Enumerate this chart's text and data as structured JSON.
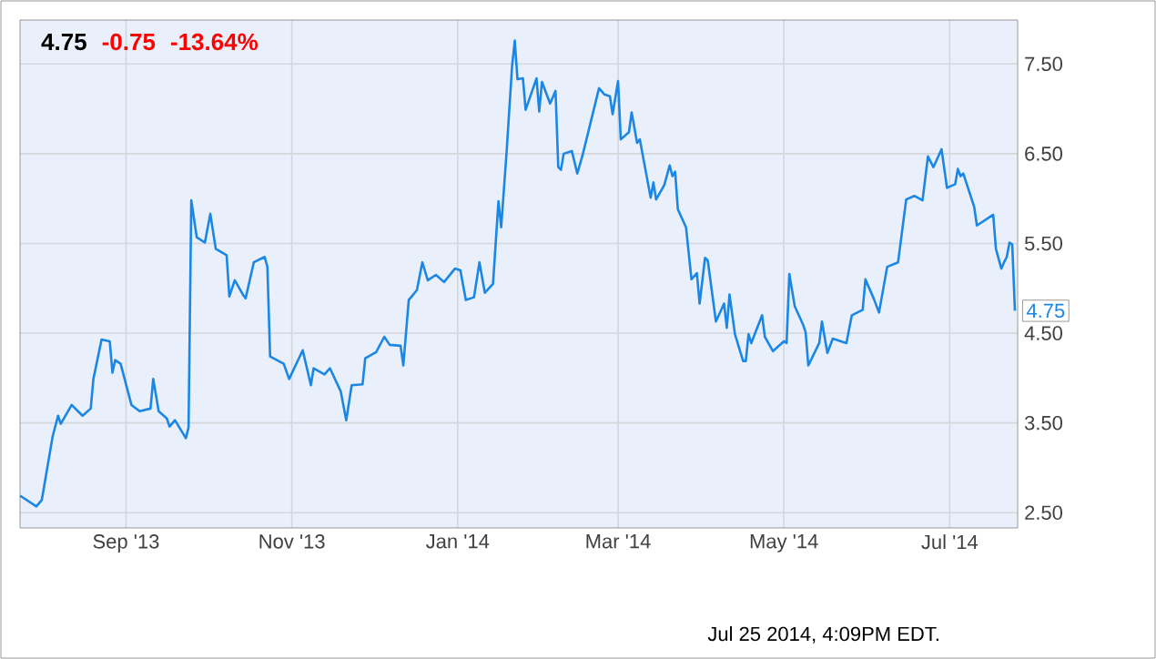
{
  "chart_data": {
    "type": "line",
    "title": "4.75",
    "annotations": [
      "-0.75",
      "-13.64%",
      "Jul 25 2014, 4:09PM EDT.",
      {
        "text": "4.75",
        "x": "2014-07-25",
        "y": 4.75
      }
    ],
    "xlim": [
      "2013-07-24",
      "2014-07-26"
    ],
    "xticks": [
      {
        "value": "2013-09-01",
        "label": "Sep '13"
      },
      {
        "value": "2013-11-01",
        "label": "Nov '13"
      },
      {
        "value": "2014-01-01",
        "label": "Jan '14"
      },
      {
        "value": "2014-03-01",
        "label": "Mar '14"
      },
      {
        "value": "2014-05-01",
        "label": "May '14"
      },
      {
        "value": "2014-07-01",
        "label": "Jul '14"
      }
    ],
    "ylim": [
      2.33,
      7.99
    ],
    "yticks": [
      {
        "value": 2.5,
        "label": "2.50"
      },
      {
        "value": 3.5,
        "label": "3.50"
      },
      {
        "value": 4.5,
        "label": "4.50"
      },
      {
        "value": 5.5,
        "label": "5.50"
      },
      {
        "value": 6.5,
        "label": "6.50"
      },
      {
        "value": 7.5,
        "label": "7.50"
      }
    ],
    "grid": true,
    "series": [
      {
        "color": "#1a87e6",
        "x": [
          "2013-07-24",
          "2013-07-30",
          "2013-08-01",
          "2013-08-05",
          "2013-08-07",
          "2013-08-08",
          "2013-08-12",
          "2013-08-16",
          "2013-08-19",
          "2013-08-20",
          "2013-08-23",
          "2013-08-26",
          "2013-08-27",
          "2013-08-28",
          "2013-08-30",
          "2013-09-03",
          "2013-09-06",
          "2013-09-10",
          "2013-09-11",
          "2013-09-13",
          "2013-09-16",
          "2013-09-17",
          "2013-09-19",
          "2013-09-23",
          "2013-09-24",
          "2013-09-25",
          "2013-09-27",
          "2013-09-30",
          "2013-10-02",
          "2013-10-04",
          "2013-10-08",
          "2013-10-09",
          "2013-10-11",
          "2013-10-14",
          "2013-10-15",
          "2013-10-18",
          "2013-10-22",
          "2013-10-23",
          "2013-10-24",
          "2013-10-29",
          "2013-10-31",
          "2013-11-05",
          "2013-11-08",
          "2013-11-09",
          "2013-11-13",
          "2013-11-15",
          "2013-11-19",
          "2013-11-21",
          "2013-11-23",
          "2013-11-27",
          "2013-11-28",
          "2013-12-02",
          "2013-12-05",
          "2013-12-07",
          "2013-12-11",
          "2013-12-12",
          "2013-12-14",
          "2013-12-17",
          "2013-12-19",
          "2013-12-21",
          "2013-12-24",
          "2013-12-27",
          "2013-12-31",
          "2014-01-02",
          "2014-01-04",
          "2014-01-07",
          "2014-01-09",
          "2014-01-11",
          "2014-01-14",
          "2014-01-16",
          "2014-01-17",
          "2014-01-19",
          "2014-01-21",
          "2014-01-22",
          "2014-01-23",
          "2014-01-25",
          "2014-01-26",
          "2014-01-30",
          "2014-01-31",
          "2014-02-01",
          "2014-02-04",
          "2014-02-06",
          "2014-02-07",
          "2014-02-08",
          "2014-02-09",
          "2014-02-12",
          "2014-02-14",
          "2014-02-16",
          "2014-02-22",
          "2014-02-24",
          "2014-02-26",
          "2014-02-27",
          "2014-03-01",
          "2014-03-02",
          "2014-03-05",
          "2014-03-06",
          "2014-03-08",
          "2014-03-09",
          "2014-03-13",
          "2014-03-14",
          "2014-03-15",
          "2014-03-18",
          "2014-03-20",
          "2014-03-21",
          "2014-03-22",
          "2014-03-23",
          "2014-03-26",
          "2014-03-28",
          "2014-03-30",
          "2014-03-31",
          "2014-04-02",
          "2014-04-03",
          "2014-04-06",
          "2014-04-09",
          "2014-04-10",
          "2014-04-11",
          "2014-04-13",
          "2014-04-16",
          "2014-04-17",
          "2014-04-18",
          "2014-04-19",
          "2014-04-23",
          "2014-04-24",
          "2014-04-27",
          "2014-05-01",
          "2014-05-02",
          "2014-05-03",
          "2014-05-05",
          "2014-05-08",
          "2014-05-09",
          "2014-05-10",
          "2014-05-14",
          "2014-05-15",
          "2014-05-17",
          "2014-05-19",
          "2014-05-24",
          "2014-05-26",
          "2014-05-30",
          "2014-05-31",
          "2014-06-03",
          "2014-06-05",
          "2014-06-08",
          "2014-06-12",
          "2014-06-15",
          "2014-06-18",
          "2014-06-21",
          "2014-06-23",
          "2014-06-25",
          "2014-06-28",
          "2014-06-30",
          "2014-07-03",
          "2014-07-04",
          "2014-07-05",
          "2014-07-06",
          "2014-07-10",
          "2014-07-11",
          "2014-07-17",
          "2014-07-18",
          "2014-07-20",
          "2014-07-21",
          "2014-07-22",
          "2014-07-23",
          "2014-07-24",
          "2014-07-25"
        ],
        "values": [
          2.69,
          2.57,
          2.64,
          3.35,
          3.58,
          3.49,
          3.7,
          3.58,
          3.66,
          3.99,
          4.43,
          4.41,
          4.06,
          4.2,
          4.16,
          3.7,
          3.63,
          3.66,
          3.99,
          3.63,
          3.55,
          3.46,
          3.53,
          3.33,
          3.45,
          5.98,
          5.57,
          5.51,
          5.83,
          5.44,
          5.37,
          4.91,
          5.09,
          4.93,
          4.89,
          5.29,
          5.35,
          5.24,
          4.24,
          4.16,
          3.99,
          4.31,
          3.92,
          4.11,
          4.04,
          4.11,
          3.85,
          3.53,
          3.92,
          3.93,
          4.22,
          4.29,
          4.46,
          4.37,
          4.36,
          4.14,
          4.87,
          4.98,
          5.29,
          5.09,
          5.15,
          5.07,
          5.22,
          5.2,
          4.87,
          4.9,
          5.29,
          4.95,
          5.05,
          5.97,
          5.68,
          6.52,
          7.47,
          7.76,
          7.33,
          7.34,
          6.99,
          7.34,
          6.97,
          7.3,
          7.06,
          7.2,
          6.35,
          6.32,
          6.5,
          6.53,
          6.28,
          6.49,
          7.23,
          7.16,
          7.14,
          6.94,
          7.31,
          6.66,
          6.74,
          6.96,
          6.62,
          6.66,
          6.01,
          6.18,
          5.99,
          6.15,
          6.37,
          6.25,
          6.3,
          5.88,
          5.68,
          5.1,
          5.17,
          4.83,
          5.34,
          5.31,
          4.63,
          4.83,
          4.56,
          4.93,
          4.49,
          4.19,
          4.19,
          4.49,
          4.39,
          4.7,
          4.46,
          4.3,
          4.41,
          4.39,
          5.16,
          4.8,
          4.6,
          4.51,
          4.14,
          4.39,
          4.63,
          4.28,
          4.44,
          4.39,
          4.7,
          4.76,
          5.1,
          4.89,
          4.73,
          5.24,
          5.29,
          5.99,
          6.03,
          5.98,
          6.47,
          6.35,
          6.55,
          6.12,
          6.16,
          6.33,
          6.25,
          6.28,
          5.91,
          5.7,
          5.82,
          5.44,
          5.22,
          5.29,
          5.35,
          5.51,
          5.49,
          4.75
        ]
      }
    ]
  }
}
